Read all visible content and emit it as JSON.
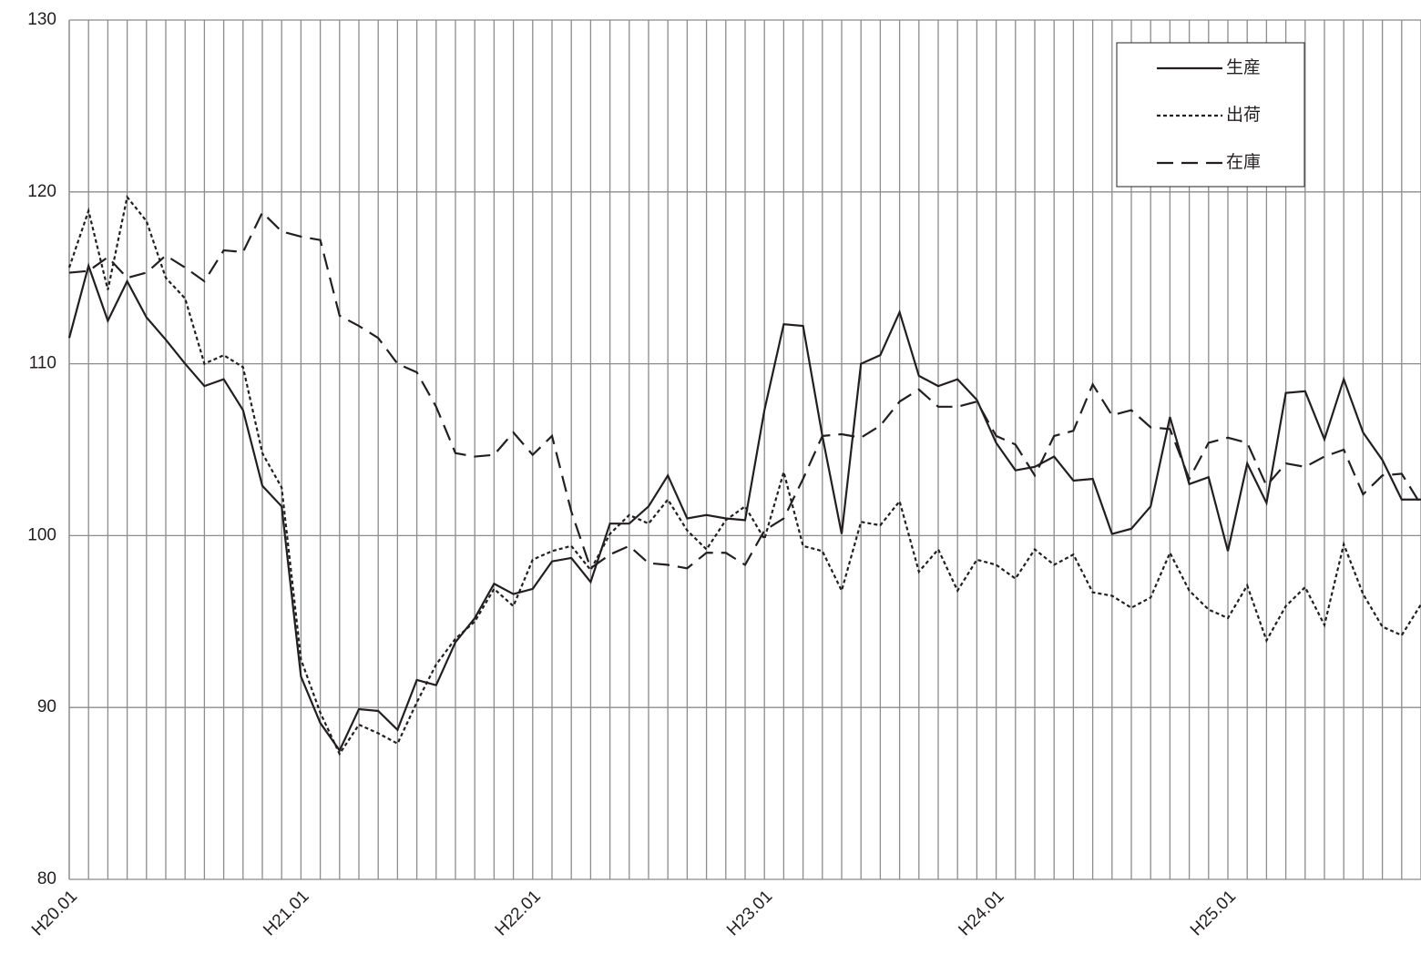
{
  "chart_data": {
    "type": "line",
    "categories": [
      "H20.01",
      null,
      null,
      null,
      null,
      null,
      null,
      null,
      null,
      null,
      null,
      null,
      "H21.01",
      null,
      null,
      null,
      null,
      null,
      null,
      null,
      null,
      null,
      null,
      null,
      "H22.01",
      null,
      null,
      null,
      null,
      null,
      null,
      null,
      null,
      null,
      null,
      null,
      "H23.01",
      null,
      null,
      null,
      null,
      null,
      null,
      null,
      null,
      null,
      null,
      null,
      "H24.01",
      null,
      null,
      null,
      null,
      null,
      null,
      null,
      null,
      null,
      null,
      null,
      "H25.01",
      null,
      null,
      null,
      null,
      null,
      null,
      null,
      null,
      null,
      null
    ],
    "series": [
      {
        "name": "生産",
        "color": "#231f20",
        "style": "solid",
        "values": [
          111.5,
          115.7,
          112.5,
          114.8,
          112.7,
          111.4,
          110.0,
          108.7,
          109.1,
          107.3,
          102.9,
          101.7,
          91.8,
          89.1,
          87.5,
          89.9,
          89.8,
          88.7,
          91.6,
          91.3,
          93.8,
          95.2,
          97.2,
          96.6,
          96.9,
          98.5,
          98.7,
          97.3,
          100.7,
          100.7,
          101.7,
          103.5,
          101.0,
          101.2,
          101.0,
          100.9,
          107.3,
          112.3,
          112.2,
          105.8,
          100.1,
          110.0,
          110.5,
          113.0,
          109.3,
          108.7,
          109.1,
          107.9,
          105.4,
          103.8,
          104.0,
          104.6,
          103.2,
          103.3,
          100.1,
          100.4,
          101.7,
          106.9,
          103.0,
          103.4,
          99.1,
          104.2,
          101.9,
          108.3,
          108.4,
          105.6,
          109.1,
          106.0,
          104.4,
          102.1,
          102.1
        ]
      },
      {
        "name": "出荷",
        "color": "#231f20",
        "style": "dotted",
        "values": [
          115.6,
          118.9,
          114.3,
          119.7,
          118.3,
          115.0,
          113.8,
          110.0,
          110.5,
          109.8,
          104.8,
          102.8,
          92.8,
          89.7,
          87.3,
          89.0,
          88.5,
          87.9,
          90.3,
          92.5,
          94.0,
          95.0,
          96.9,
          95.9,
          98.6,
          99.1,
          99.4,
          98.0,
          100.1,
          101.2,
          100.7,
          102.1,
          100.3,
          99.2,
          100.9,
          101.7,
          99.8,
          103.7,
          99.4,
          99.1,
          96.8,
          100.8,
          100.6,
          102.0,
          97.9,
          99.2,
          96.8,
          98.6,
          98.3,
          97.5,
          99.2,
          98.3,
          98.9,
          96.7,
          96.5,
          95.8,
          96.4,
          99.0,
          96.8,
          95.7,
          95.2,
          97.1,
          93.9,
          95.9,
          97.0,
          94.8,
          99.5,
          96.6,
          94.7,
          94.2,
          96.0
        ]
      },
      {
        "name": "在庫",
        "color": "#231f20",
        "style": "dashed",
        "values": [
          115.3,
          115.4,
          116.2,
          115.0,
          115.3,
          116.3,
          115.6,
          114.8,
          116.6,
          116.5,
          118.8,
          117.7,
          117.4,
          117.2,
          112.8,
          112.2,
          111.5,
          110.0,
          109.5,
          107.5,
          104.8,
          104.6,
          104.7,
          106.0,
          104.7,
          105.8,
          101.4,
          98.1,
          98.9,
          99.4,
          98.4,
          98.3,
          98.1,
          99.0,
          99.0,
          98.3,
          100.3,
          101.0,
          103.3,
          105.8,
          105.9,
          105.7,
          106.4,
          107.8,
          108.5,
          107.5,
          107.5,
          107.8,
          105.8,
          105.3,
          103.5,
          105.8,
          106.1,
          108.8,
          107.0,
          107.3,
          106.3,
          106.2,
          103.3,
          105.4,
          105.7,
          105.4,
          102.9,
          104.2,
          104.0,
          104.6,
          105.0,
          102.4,
          103.5,
          103.6,
          101.8
        ]
      }
    ],
    "ylim": [
      80,
      130
    ],
    "yticks": [
      80,
      90,
      100,
      110,
      120,
      130
    ],
    "grid": true,
    "legend": "top-right"
  }
}
